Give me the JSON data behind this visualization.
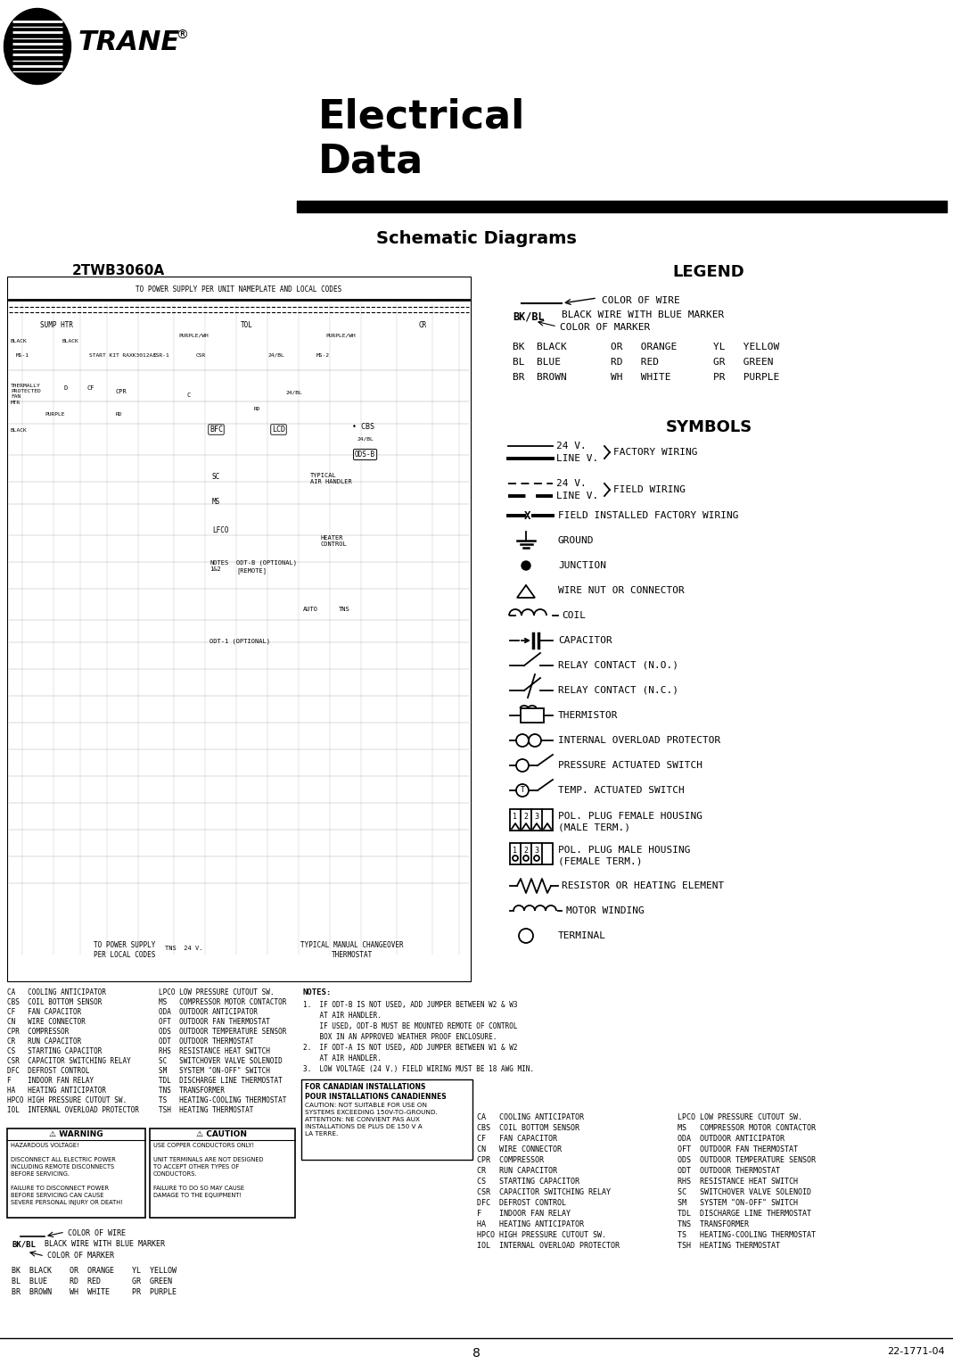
{
  "title_line1": "Electrical",
  "title_line2": "Data",
  "subtitle": "Schematic Diagrams",
  "diagram_title": "2TWB3060A",
  "legend_title": "LEGEND",
  "symbols_title": "SYMBOLS",
  "legend_items": [
    [
      "BK",
      "BLACK",
      "OR",
      "ORANGE",
      "YL",
      "YELLOW"
    ],
    [
      "BL",
      "BLUE",
      "RD",
      "RED",
      "GR",
      "GREEN"
    ],
    [
      "BR",
      "BROWN",
      "WH",
      "WHITE",
      "PR",
      "PURPLE"
    ]
  ],
  "abbrev_left": [
    [
      "CA",
      "COOLING ANTICIPATOR"
    ],
    [
      "CBS",
      "COIL BOTTOM SENSOR"
    ],
    [
      "CF",
      "FAN CAPACITOR"
    ],
    [
      "CN",
      "WIRE CONNECTOR"
    ],
    [
      "CPR",
      "COMPRESSOR"
    ],
    [
      "CR",
      "RUN CAPACITOR"
    ],
    [
      "CS",
      "STARTING CAPACITOR"
    ],
    [
      "CSR",
      "CAPACITOR SWITCHING RELAY"
    ],
    [
      "DFC",
      "DEFROST CONTROL"
    ],
    [
      "F",
      "INDOOR FAN RELAY"
    ],
    [
      "HA",
      "HEATING ANTICIPATOR"
    ],
    [
      "HPCO",
      "HIGH PRESSURE CUTOUT SW."
    ],
    [
      "IOL",
      "INTERNAL OVERLOAD PROTECTOR"
    ]
  ],
  "abbrev_right": [
    [
      "LPCO",
      "LOW PRESSURE CUTOUT SW."
    ],
    [
      "MS",
      "COMPRESSOR MOTOR CONTACTOR"
    ],
    [
      "ODA",
      "OUTDOOR ANTICIPATOR"
    ],
    [
      "OFT",
      "OUTDOOR FAN THERMOSTAT"
    ],
    [
      "ODS",
      "OUTDOOR TEMPERATURE SENSOR"
    ],
    [
      "ODT",
      "OUTDOOR THERMOSTAT"
    ],
    [
      "RHS",
      "RESISTANCE HEAT SWITCH"
    ],
    [
      "SC",
      "SWITCHOVER VALVE SOLENOID"
    ],
    [
      "SM",
      "SYSTEM \"ON-OFF\" SWITCH"
    ],
    [
      "TDL",
      "DISCHARGE LINE THERMOSTAT"
    ],
    [
      "TNS",
      "TRANSFORMER"
    ],
    [
      "TS",
      "HEATING-COOLING THERMOSTAT"
    ],
    [
      "TSH",
      "HEATING THERMOSTAT"
    ]
  ],
  "abbrev2_left": [
    [
      "CA",
      "COOLING ANTICIPATOR"
    ],
    [
      "CBS",
      "COIL BOTTOM SENSOR"
    ],
    [
      "CF",
      "FAN CAPACITOR"
    ],
    [
      "CN",
      "WIRE CONNECTOR"
    ],
    [
      "CPR",
      "COMPRESSOR"
    ],
    [
      "CR",
      "RUN CAPACITOR"
    ],
    [
      "CS",
      "STARTING CAPACITOR"
    ],
    [
      "CSR",
      "CAPACITOR SWITCHING RELAY"
    ],
    [
      "DFC",
      "DEFROST CONTROL"
    ],
    [
      "F",
      "INDOOR FAN RELAY"
    ],
    [
      "HA",
      "HEATING ANTICIPATOR"
    ],
    [
      "HPCO",
      "HIGH PRESSURE CUTOUT SW."
    ],
    [
      "IOL",
      "INTERNAL OVERLOAD PROTECTOR"
    ]
  ],
  "abbrev2_right": [
    [
      "LPCO",
      "LOW PRESSURE CUTOUT SW."
    ],
    [
      "MS",
      "COMPRESSOR MOTOR CONTACTOR"
    ],
    [
      "ODA",
      "OUTDOOR ANTICIPATOR"
    ],
    [
      "OFT",
      "OUTDOOR FAN THERMOSTAT"
    ],
    [
      "ODS",
      "OUTDOOR TEMPERATURE SENSOR"
    ],
    [
      "ODT",
      "OUTDOOR THERMOSTAT"
    ],
    [
      "RHS",
      "RESISTANCE HEAT SWITCH"
    ],
    [
      "SC",
      "SWITCHOVER VALVE SOLENOID"
    ],
    [
      "SM",
      "SYSTEM \"ON-OFF\" SWITCH"
    ],
    [
      "TDL",
      "DISCHARGE LINE THERMOSTAT"
    ],
    [
      "TNS",
      "TRANSFORMER"
    ],
    [
      "TS",
      "HEATING-COOLING THERMOSTAT"
    ],
    [
      "TSH",
      "HEATING THERMOSTAT"
    ]
  ],
  "notes": [
    "1.  IF ODT-B IS NOT USED, ADD JUMPER BETWEEN W2 & W3",
    "    AT AIR HANDLER.",
    "    IF USED, ODT-B MUST BE MOUNTED REMOTE OF CONTROL",
    "    BOX IN AN APPROVED WEATHER PROOF ENCLOSURE.",
    "2.  IF ODT-A IS NOT USED, ADD JUMPER BETWEEN W1 & W2",
    "    AT AIR HANDLER.",
    "3.  LOW VOLTAGE (24 V.) FIELD WIRING MUST BE 18 AWG MIN."
  ],
  "page_num": "8",
  "doc_num": "22-1771-04",
  "bg_color": "#ffffff"
}
